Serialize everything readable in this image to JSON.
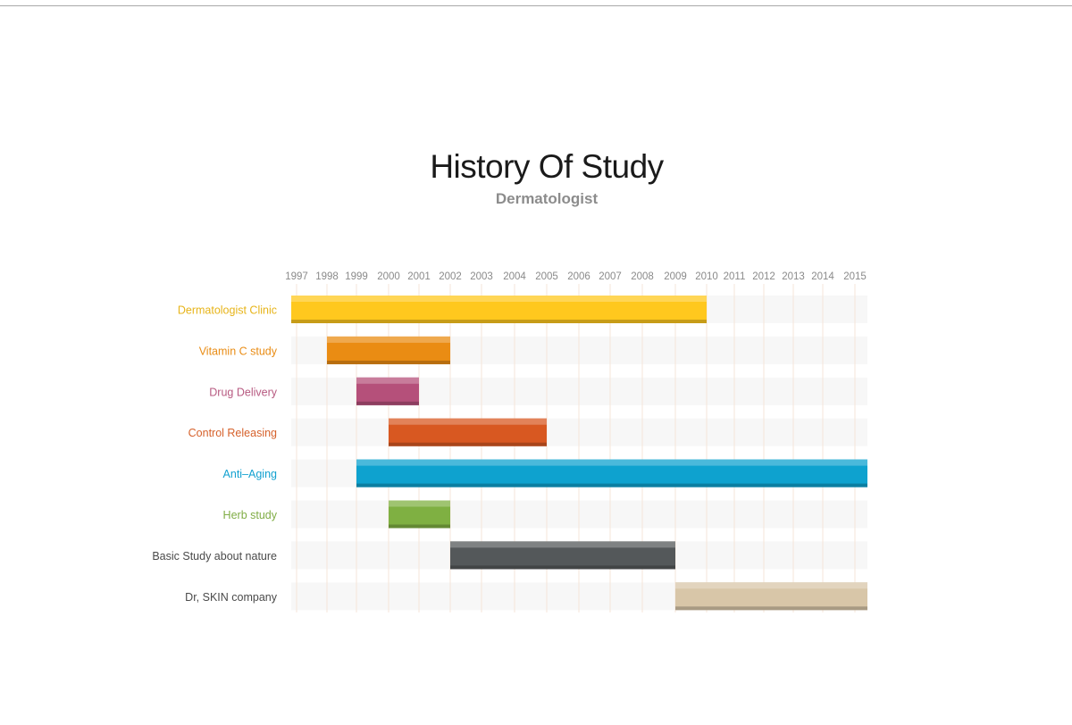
{
  "header": {
    "title": "History Of Study",
    "subtitle": "Dermatologist"
  },
  "chart_data": {
    "type": "bar",
    "orientation": "horizontal-range",
    "title": "History Of Study",
    "subtitle": "Dermatologist",
    "xlabel": "",
    "ylabel": "",
    "x_ticks": [
      "1997",
      "1998",
      "1999",
      "2000",
      "2001",
      "2002",
      "2003",
      "2004",
      "2005",
      "2006",
      "2007",
      "2008",
      "2009",
      "2010",
      "2011",
      "2012",
      "2013",
      "2014",
      "2015"
    ],
    "xlim": [
      1997,
      2015.4
    ],
    "grid": true,
    "legend": "none",
    "series": [
      {
        "name": "Dermatologist Clinic",
        "start": 1997,
        "end": 2010,
        "color": "#ffc81e",
        "label_color": "#e7b419"
      },
      {
        "name": "Vitamin C study",
        "start": 1998,
        "end": 2002,
        "color": "#ea8c13",
        "label_color": "#e98c14"
      },
      {
        "name": "Drug Delivery",
        "start": 1999,
        "end": 2001,
        "color": "#b5507a",
        "label_color": "#b75a81"
      },
      {
        "name": "Control Releasing",
        "start": 2000,
        "end": 2005,
        "color": "#d85821",
        "label_color": "#d6612b"
      },
      {
        "name": "Anti–Aging",
        "start": 1999,
        "end": 2015.4,
        "color": "#0ea2cf",
        "label_color": "#12a1d0"
      },
      {
        "name": "Herb study",
        "start": 2000,
        "end": 2002,
        "color": "#7fb042",
        "label_color": "#80ad46"
      },
      {
        "name": "Basic Study about nature",
        "start": 2002,
        "end": 2009,
        "color": "#54585a",
        "label_color": "#4a4a4a"
      },
      {
        "name": "Dr, SKIN company",
        "start": 2009,
        "end": 2015.4,
        "color": "#d8c6a8",
        "label_color": "#4a4a4a"
      }
    ]
  }
}
